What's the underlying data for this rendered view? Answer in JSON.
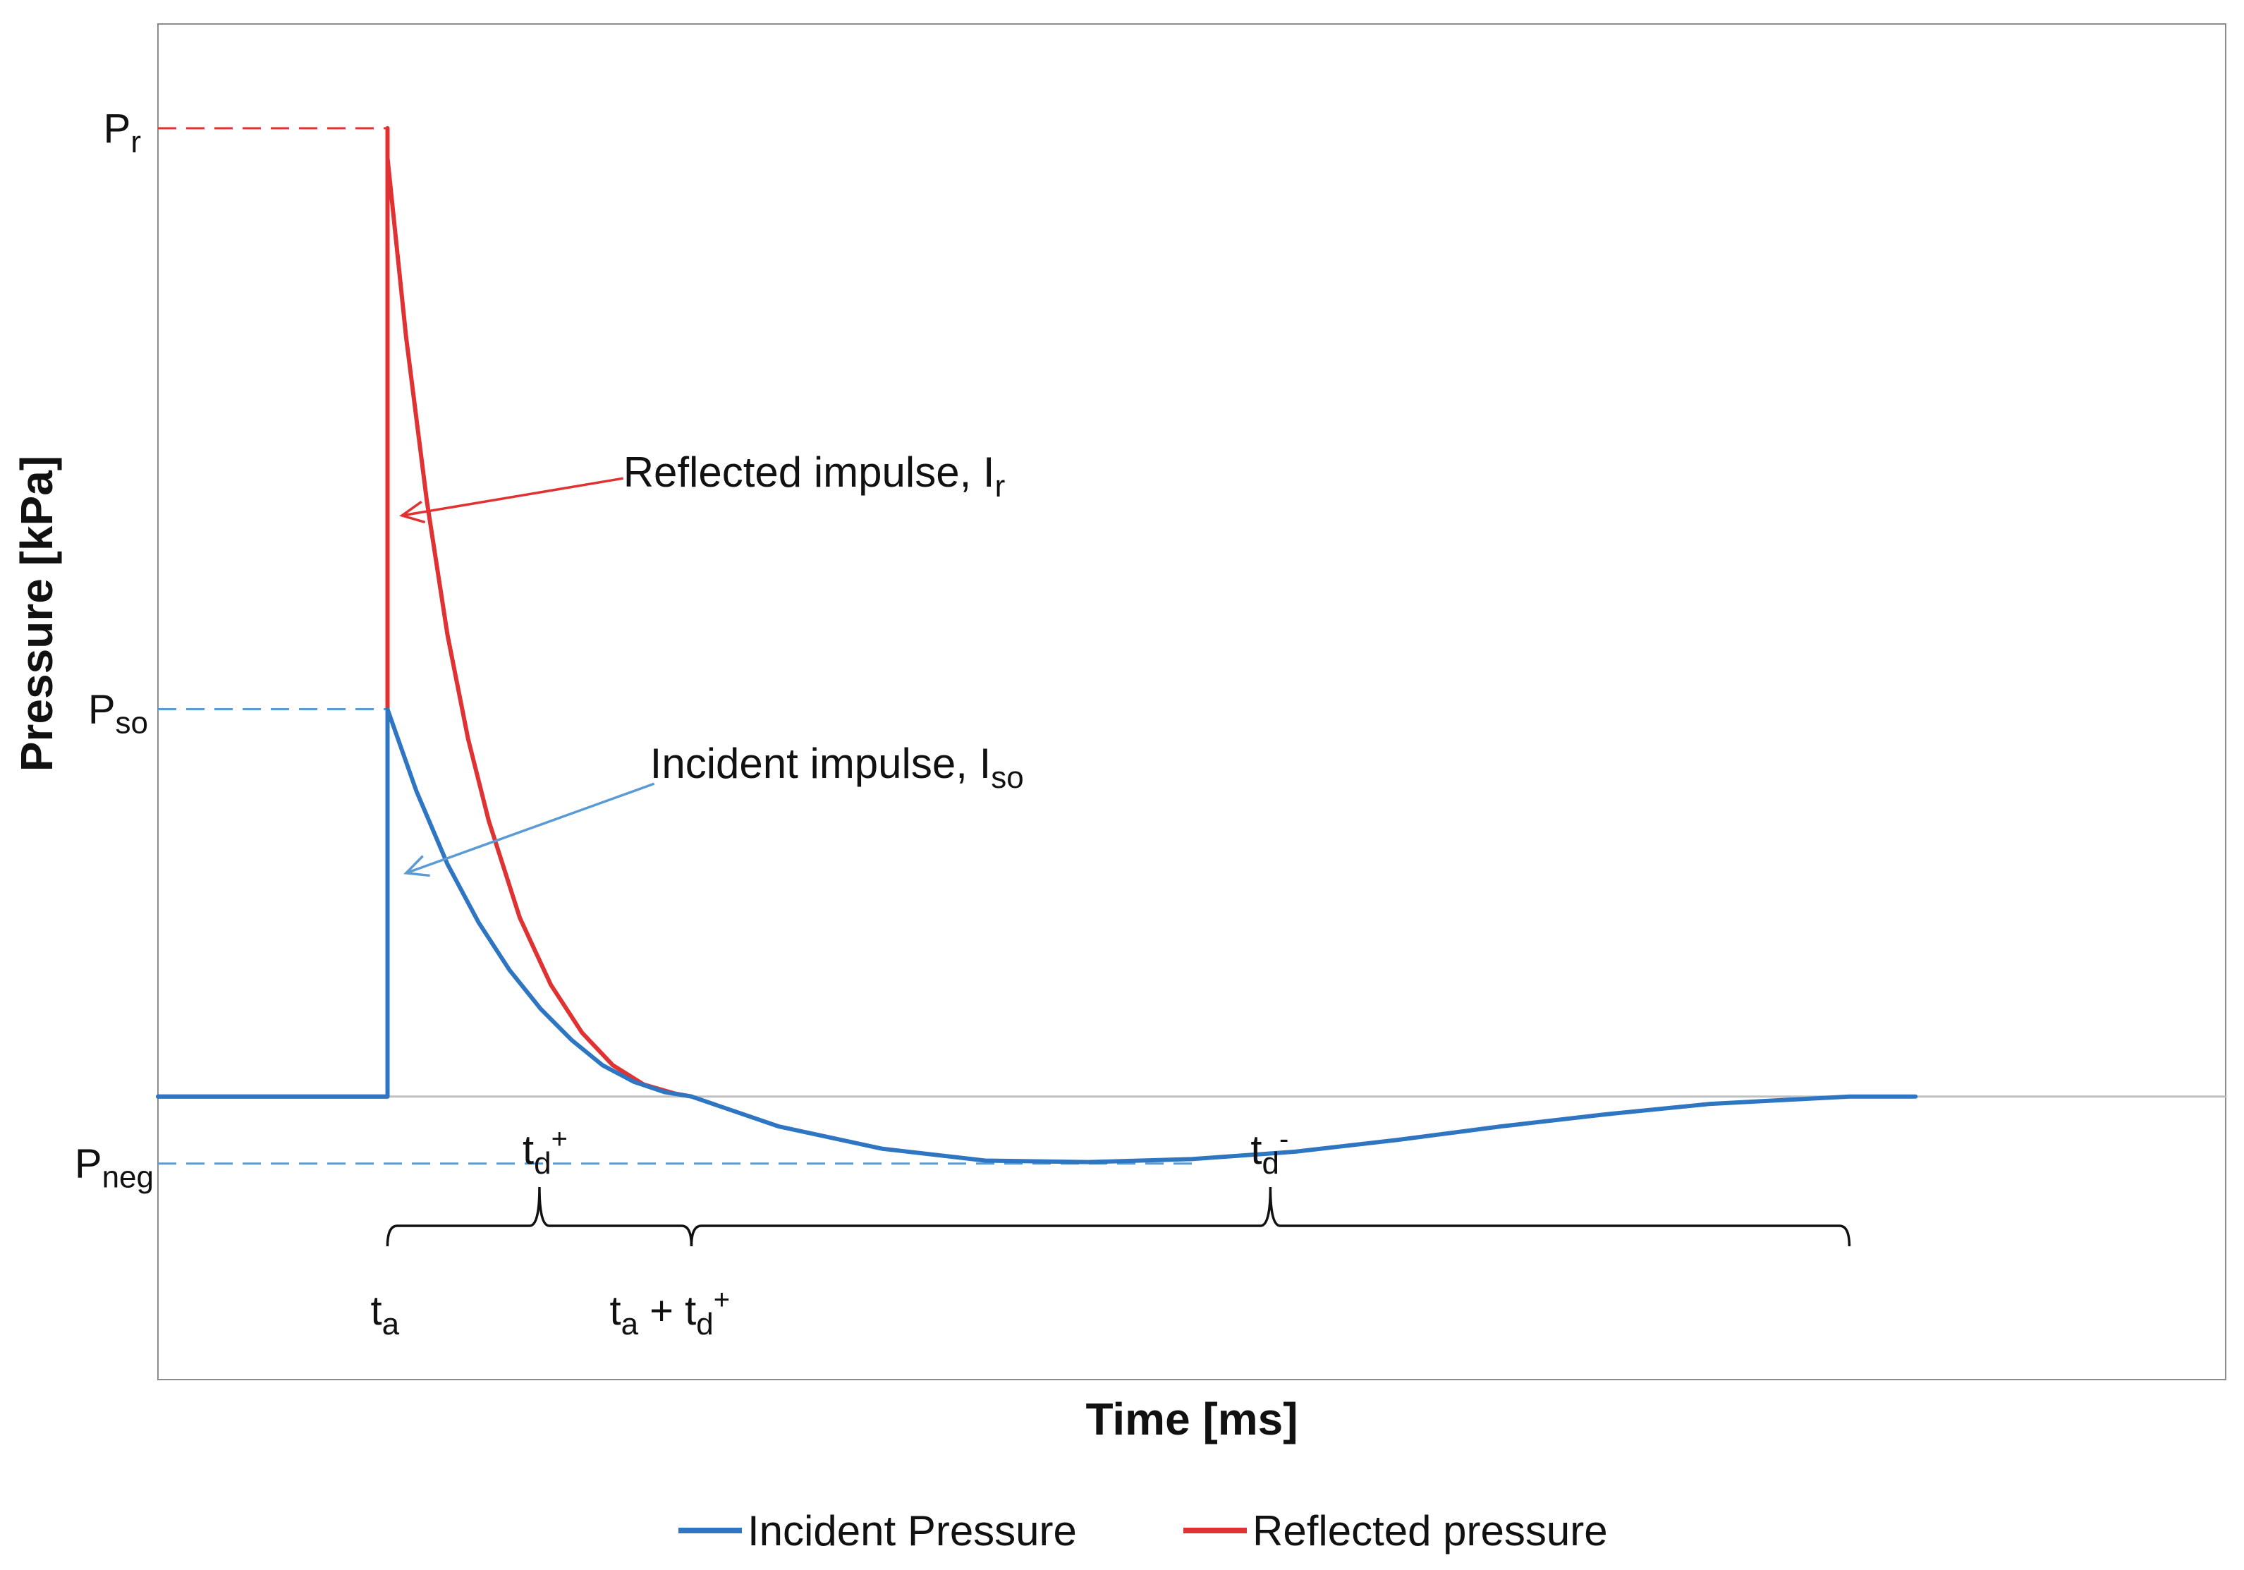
{
  "chart_data": {
    "type": "line",
    "title": "",
    "xlabel": "Time [ms]",
    "ylabel": "Pressure [kPa]",
    "xlim": [
      0,
      100
    ],
    "ylim": [
      -1.9,
      7.2
    ],
    "grid": false,
    "legend_position": "bottom",
    "colors": {
      "incident": "#2e75c2",
      "reflected": "#e03232",
      "ref_incident": "#5b9bd5",
      "ref_reflected": "#e03232",
      "baseline": "#c0c0c0",
      "brace": "#111111"
    },
    "key_times": {
      "t_a": 11.1,
      "t_a_plus_td_pos": 25.8,
      "t_end": 81.8,
      "t_min": 45.0
    },
    "key_pressures": {
      "P_r": 6.5,
      "P_so": 2.6,
      "P_neg": -0.45
    },
    "series": [
      {
        "name": "Incident Pressure",
        "color": "#2e75c2",
        "x": [
          0,
          11.1,
          11.1,
          12.5,
          14.0,
          15.5,
          17.0,
          18.5,
          20.0,
          21.5,
          23.0,
          24.5,
          25.8,
          30,
          35,
          40,
          45,
          50,
          55,
          60,
          65,
          70,
          75,
          81.8,
          85
        ],
        "y": [
          0,
          0,
          2.6,
          2.05,
          1.56,
          1.17,
          0.85,
          0.59,
          0.38,
          0.21,
          0.1,
          0.03,
          0,
          -0.2,
          -0.35,
          -0.43,
          -0.44,
          -0.42,
          -0.37,
          -0.29,
          -0.2,
          -0.12,
          -0.05,
          0,
          0
        ]
      },
      {
        "name": "Reflected pressure",
        "color": "#e03232",
        "x": [
          0,
          11.1,
          11.1,
          11.1,
          12.0,
          13.0,
          14.0,
          15.0,
          16.0,
          17.5,
          19.0,
          20.5,
          22.0,
          23.5,
          25.0,
          25.8
        ],
        "y": [
          0,
          0,
          6.5,
          6.3,
          5.1,
          4.0,
          3.1,
          2.4,
          1.85,
          1.2,
          0.75,
          0.43,
          0.21,
          0.08,
          0.02,
          0
        ]
      }
    ],
    "reference_lines": [
      {
        "label": "P_r",
        "y": 6.5,
        "x_from": 0,
        "x_to": 11.1,
        "style": "dashed",
        "color": "#e03232"
      },
      {
        "label": "P_so",
        "y": 2.6,
        "x_from": 0,
        "x_to": 11.1,
        "style": "dashed",
        "color": "#5b9bd5"
      },
      {
        "label": "P_neg",
        "y": -0.45,
        "x_from": 0,
        "x_to": 50,
        "style": "dashed",
        "color": "#5b9bd5"
      },
      {
        "label": "baseline",
        "y": 0,
        "x_from": 0,
        "x_to": 100,
        "style": "solid",
        "color": "#c0c0c0"
      }
    ],
    "braces": [
      {
        "label": "td+",
        "x_from": 11.1,
        "x_to": 25.8
      },
      {
        "label": "td-",
        "x_from": 25.8,
        "x_to": 81.8
      }
    ],
    "arrows": [
      {
        "label": "Reflected impulse",
        "color": "#e03232",
        "from": [
          22.5,
          4.15
        ],
        "to": [
          11.8,
          3.9
        ]
      },
      {
        "label": "Incident impulse",
        "color": "#5b9bd5",
        "from": [
          24.0,
          2.1
        ],
        "to": [
          12.0,
          1.5
        ]
      }
    ],
    "tick_labels": {
      "y": [
        {
          "id": "Pr",
          "base": "P",
          "sub": "r",
          "value": 6.5
        },
        {
          "id": "Pso",
          "base": "P",
          "sub": "so",
          "value": 2.6
        },
        {
          "id": "Pneg",
          "base": "P",
          "sub": "neg",
          "value": -0.45
        }
      ],
      "x": [
        {
          "id": "ta",
          "base": "t",
          "sub": "a",
          "value": 11.1
        },
        {
          "id": "tatd",
          "base": "t",
          "sub": "a",
          "mid": " + t",
          "sub2": "d",
          "sup": "+",
          "value": 25.8
        }
      ]
    },
    "annotations": {
      "reflected_impulse": {
        "text": "Reflected impulse, I",
        "sub": "r"
      },
      "incident_impulse": {
        "text": "Incident impulse, I",
        "sub": "so"
      },
      "td_pos": {
        "base": "t",
        "sub": "d",
        "sup": "+"
      },
      "td_neg": {
        "base": "t",
        "sub": "d",
        "sup": "-"
      }
    },
    "legend": [
      {
        "name": "Incident Pressure",
        "color": "#2e75c2"
      },
      {
        "name": "Reflected pressure",
        "color": "#e03232"
      }
    ]
  }
}
